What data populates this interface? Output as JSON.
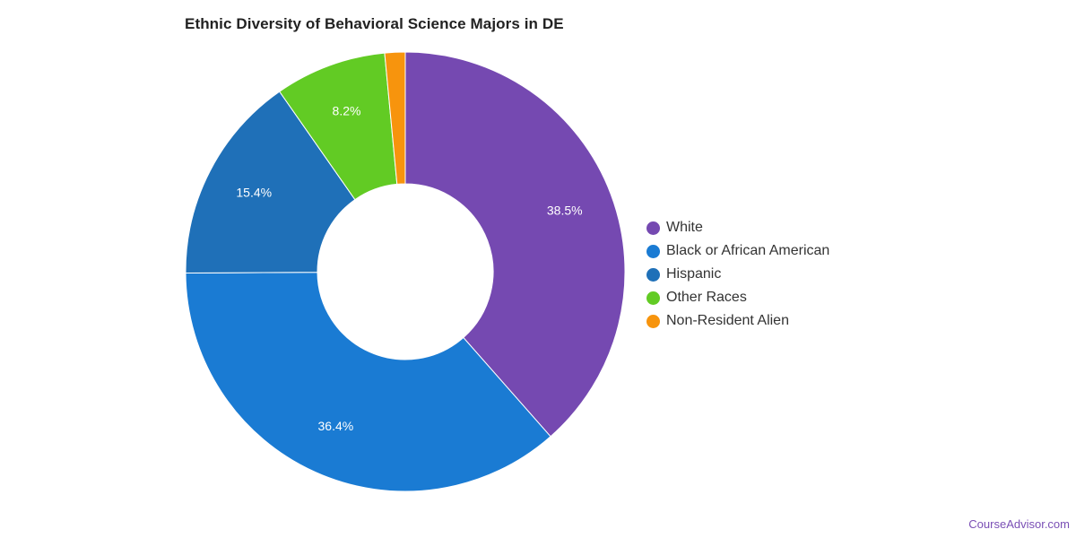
{
  "chart_data": {
    "type": "pie",
    "variant": "donut",
    "title": "Ethnic Diversity of Behavioral Science Majors in DE",
    "legend_position": "right",
    "slices": [
      {
        "name": "White",
        "value": 38.5,
        "label": "38.5%",
        "color": "#7549b1"
      },
      {
        "name": "Black or African American",
        "value": 36.4,
        "label": "36.4%",
        "color": "#1a7bd3"
      },
      {
        "name": "Hispanic",
        "value": 15.4,
        "label": "15.4%",
        "color": "#1f70b8"
      },
      {
        "name": "Other Races",
        "value": 8.2,
        "label": "8.2%",
        "color": "#62cb24"
      },
      {
        "name": "Non-Resident Alien",
        "value": 1.5,
        "label": "",
        "color": "#f7940d"
      }
    ]
  },
  "footer": {
    "credit": "CourseAdvisor.com"
  }
}
